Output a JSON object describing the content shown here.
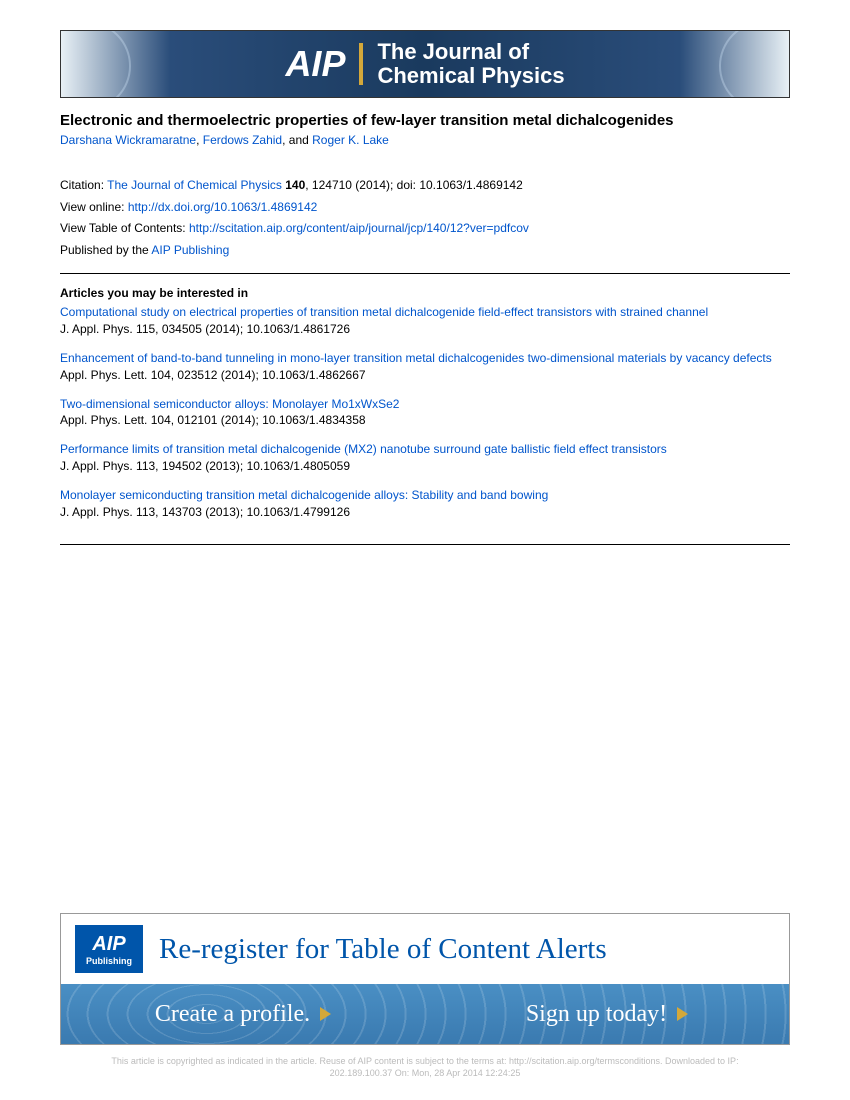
{
  "banner": {
    "logo": "AIP",
    "journal_line1": "The Journal of",
    "journal_line2": "Chemical Physics"
  },
  "article": {
    "title": "Electronic and thermoelectric properties of few-layer transition metal dichalcogenides",
    "authors": [
      {
        "name": "Darshana Wickramaratne"
      },
      {
        "name": "Ferdows Zahid"
      },
      {
        "name": "Roger K. Lake"
      }
    ],
    "author_sep": ", ",
    "author_final_sep": ", and "
  },
  "citation": {
    "label": "Citation: ",
    "journal": "The Journal of Chemical Physics",
    "vol": " 140",
    "rest": ", 124710 (2014); doi: 10.1063/1.4869142",
    "view_online_label": "View online: ",
    "view_online_url": "http://dx.doi.org/10.1063/1.4869142",
    "toc_label": "View Table of Contents: ",
    "toc_url": "http://scitation.aip.org/content/aip/journal/jcp/140/12?ver=pdfcov",
    "published_label": "Published by the ",
    "publisher": "AIP Publishing"
  },
  "related": {
    "heading": "Articles you may be interested in",
    "items": [
      {
        "title": "Computational study on electrical properties of transition metal dichalcogenide field-effect transistors with strained channel",
        "meta": "J. Appl. Phys. 115, 034505 (2014); 10.1063/1.4861726"
      },
      {
        "title": "Enhancement of band-to-band tunneling in mono-layer transition metal dichalcogenides two-dimensional materials by vacancy defects",
        "meta": "Appl. Phys. Lett. 104, 023512 (2014); 10.1063/1.4862667"
      },
      {
        "title": "Two-dimensional semiconductor alloys: Monolayer Mo1xWxSe2",
        "meta": "Appl. Phys. Lett. 104, 012101 (2014); 10.1063/1.4834358"
      },
      {
        "title": "Performance limits of transition metal dichalcogenide (MX2) nanotube surround gate ballistic field effect transistors",
        "meta": "J. Appl. Phys. 113, 194502 (2013); 10.1063/1.4805059"
      },
      {
        "title": "Monolayer semiconducting transition metal dichalcogenide alloys: Stability and band bowing",
        "meta": "J. Appl. Phys. 113, 143703 (2013); 10.1063/1.4799126"
      }
    ]
  },
  "ad": {
    "pub_logo_big": "AIP",
    "pub_logo_small": "Publishing",
    "headline": "Re-register for Table of Content Alerts",
    "cta1": "Create a profile.",
    "cta2": "Sign up today!"
  },
  "footer": {
    "line1": "This article is copyrighted as indicated in the article. Reuse of AIP content is subject to the terms at: http://scitation.aip.org/termsconditions. Downloaded to  IP:",
    "line2": "202.189.100.37 On: Mon, 28 Apr 2014 12:24:25"
  }
}
